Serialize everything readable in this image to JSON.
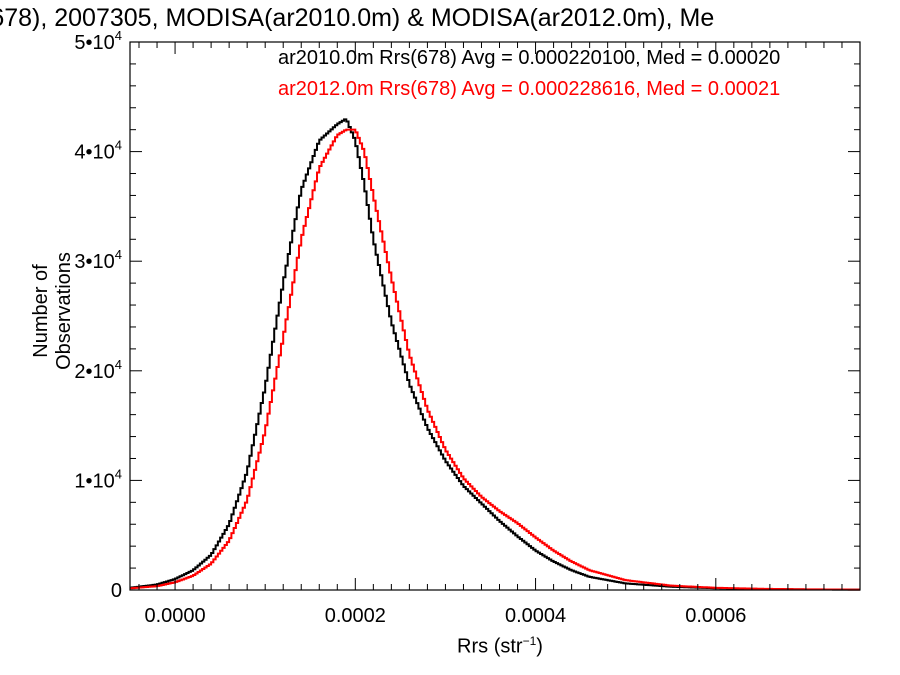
{
  "title": "(678), 2007305, MODISA(ar2010.0m) & MODISA(ar2012.0m), Me",
  "chart_data": {
    "type": "line",
    "title": "(678), 2007305, MODISA(ar2010.0m) & MODISA(ar2012.0m), Me",
    "xlabel_main": "Rrs (str",
    "xlabel_exp": "−1",
    "xlabel_close": ")",
    "ylabel": "Number of Observations",
    "xlim": [
      -5e-05,
      0.00076
    ],
    "ylim": [
      0,
      50000
    ],
    "grid": false,
    "legend_position": "top-right",
    "x_ticks": [
      {
        "value": 0.0,
        "label": "0.0000"
      },
      {
        "value": 0.0002,
        "label": "0.0002"
      },
      {
        "value": 0.0004,
        "label": "0.0004"
      },
      {
        "value": 0.0006,
        "label": "0.0006"
      }
    ],
    "y_ticks": [
      {
        "value": 0,
        "label": "0",
        "exp": ""
      },
      {
        "value": 10000,
        "label": "1•10",
        "exp": "4"
      },
      {
        "value": 20000,
        "label": "2•10",
        "exp": "4"
      },
      {
        "value": 30000,
        "label": "3•10",
        "exp": "4"
      },
      {
        "value": 40000,
        "label": "4•10",
        "exp": "4"
      },
      {
        "value": 50000,
        "label": "5•10",
        "exp": "4"
      }
    ],
    "series": [
      {
        "name": "ar2010.0m Rrs(678) Avg = 0.000220100, Med = 0.00020",
        "color": "#000000",
        "x": [
          -5e-05,
          -2e-05,
          0.0,
          2e-05,
          4e-05,
          6e-05,
          8e-05,
          0.0001,
          0.00012,
          0.00014,
          0.00016,
          0.00018,
          0.00019,
          0.0002,
          0.00021,
          0.00022,
          0.00024,
          0.00026,
          0.00028,
          0.0003,
          0.00032,
          0.00034,
          0.00036,
          0.00038,
          0.0004,
          0.00042,
          0.00044,
          0.00046,
          0.0005,
          0.00055,
          0.0006,
          0.00065,
          0.0007,
          0.00076
        ],
        "y": [
          200,
          500,
          1000,
          1800,
          3200,
          6000,
          10800,
          18500,
          28000,
          36500,
          41000,
          42500,
          43000,
          41000,
          37000,
          32000,
          24500,
          18800,
          14800,
          11800,
          9500,
          7900,
          6300,
          4900,
          3600,
          2600,
          1800,
          1200,
          600,
          300,
          160,
          90,
          50,
          30
        ]
      },
      {
        "name": "ar2012.0m Rrs(678) Avg = 0.000228616, Med = 0.00021",
        "color": "#ff0000",
        "x": [
          -5e-05,
          -2e-05,
          0.0,
          2e-05,
          4e-05,
          6e-05,
          8e-05,
          0.0001,
          0.00012,
          0.00014,
          0.00016,
          0.00018,
          0.00019,
          0.0002,
          0.00021,
          0.00022,
          0.00024,
          0.00026,
          0.00028,
          0.0003,
          0.00032,
          0.00034,
          0.00036,
          0.00038,
          0.0004,
          0.00042,
          0.00044,
          0.00046,
          0.0005,
          0.00055,
          0.0006,
          0.00065,
          0.0007,
          0.00076
        ],
        "y": [
          150,
          350,
          700,
          1300,
          2400,
          4500,
          8200,
          14500,
          23000,
          32000,
          38500,
          41500,
          42000,
          42000,
          40000,
          36000,
          28500,
          21500,
          16500,
          12800,
          10200,
          8500,
          7200,
          6100,
          4800,
          3600,
          2600,
          1800,
          900,
          400,
          200,
          110,
          60,
          35
        ]
      }
    ]
  }
}
